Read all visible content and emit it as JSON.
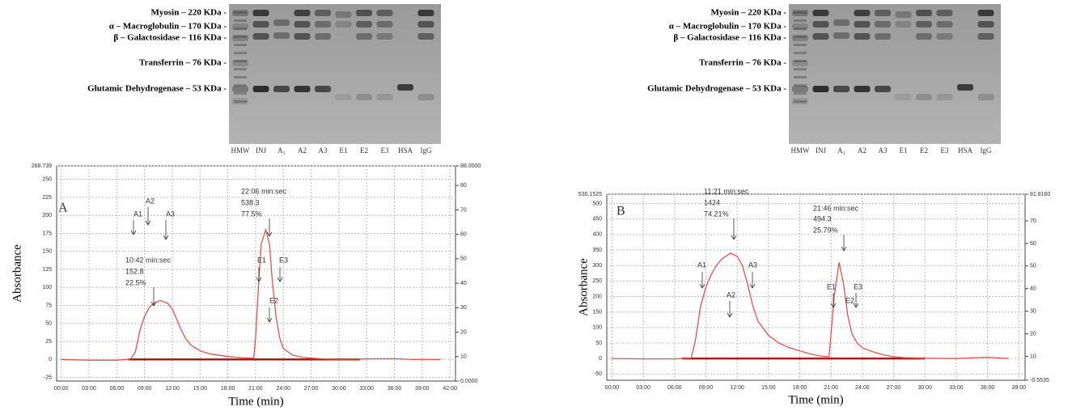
{
  "gels": [
    {
      "markers": [
        "Myosin – 220 KDa -",
        "α – Macroglobulin – 170 KDa -",
        "β – Galactosidase – 116 KDa -",
        "Transferrin – 76 KDa -",
        "Glutamic Dehydrogenase – 53 KDa -"
      ],
      "lanes": [
        "HMW",
        "INJ",
        "A₁",
        "A2",
        "A3",
        "E1",
        "E2",
        "E3",
        "HSA",
        "IgG"
      ]
    },
    {
      "markers": [
        "Myosin – 220 KDa -",
        "α – Macroglobulin – 170 KDa -",
        "β – Galactosidase – 116 KDa -",
        "Transferrin – 76 KDa -",
        "Glutamic Dehydrogenase – 53 KDa -"
      ],
      "lanes": [
        "HMW",
        "INJ",
        "A₁",
        "A2",
        "A3",
        "E1",
        "E2",
        "E3",
        "HSA",
        "IgG"
      ]
    }
  ],
  "chart_data": [
    {
      "type": "line",
      "xlabel": "Time (min)",
      "ylabel": "Absorbance",
      "color": "#e8504a",
      "grid": true,
      "x": [
        0,
        3,
        6,
        7,
        7.5,
        8,
        8.5,
        9,
        9.5,
        10,
        10.7,
        11.5,
        12,
        12.5,
        13,
        13.5,
        14,
        15,
        16,
        18,
        20,
        20.8,
        21,
        21.3,
        21.6,
        22.1,
        22.5,
        22.8,
        23.2,
        23.6,
        24,
        25,
        26,
        28,
        30,
        34,
        36,
        38,
        40,
        41
      ],
      "values": [
        0,
        -1,
        -1,
        0,
        1,
        10,
        40,
        60,
        72,
        78,
        82,
        78,
        70,
        55,
        40,
        28,
        20,
        12,
        8,
        4,
        2,
        2,
        30,
        100,
        160,
        180,
        160,
        110,
        60,
        30,
        15,
        6,
        3,
        1,
        0,
        1,
        1,
        0,
        0,
        0
      ],
      "xlim": [
        -0.5,
        42.6
      ],
      "xticks": [
        {
          "value": 0,
          "label": "00:00"
        },
        {
          "value": 3,
          "label": "03:00"
        },
        {
          "value": 6,
          "label": "06:00"
        },
        {
          "value": 9,
          "label": "09:00"
        },
        {
          "value": 12,
          "label": "12:00"
        },
        {
          "value": 15,
          "label": "15:00"
        },
        {
          "value": 18,
          "label": "18:00"
        },
        {
          "value": 21,
          "label": "21:00"
        },
        {
          "value": 24,
          "label": "24:00"
        },
        {
          "value": 27,
          "label": "27:00"
        },
        {
          "value": 30,
          "label": "30:00"
        },
        {
          "value": 33,
          "label": "33:00"
        },
        {
          "value": 36,
          "label": "36:00"
        },
        {
          "value": 39,
          "label": "39:00"
        },
        {
          "value": 42,
          "label": "42:00"
        }
      ],
      "ylim": [
        -30,
        268.739
      ],
      "yticks": [
        -25,
        0,
        25,
        50,
        75,
        100,
        125,
        150,
        175,
        200,
        225,
        250,
        268.739
      ],
      "y2lim": [
        0,
        88
      ],
      "y2ticks": [
        {
          "value": 0,
          "label": "0.0000"
        },
        10,
        20,
        30,
        40,
        50,
        60,
        70,
        80,
        {
          "value": 88,
          "label": "88.0000"
        }
      ],
      "annotations": [
        "A",
        "A2",
        "A1",
        "A3",
        "10:42 min:sec",
        "152.8",
        "22.5%",
        "22:06 min:sec",
        "538.3",
        "77.5%",
        "E1",
        "E3",
        "E2"
      ]
    },
    {
      "type": "line",
      "xlabel": "Time (min)",
      "ylabel": "Absorbance",
      "color": "#e8504a",
      "grid": true,
      "x": [
        0,
        3,
        6,
        7,
        7.6,
        8,
        8.5,
        9,
        9.5,
        10,
        10.5,
        11.35,
        12,
        12.5,
        13,
        13.5,
        14,
        15,
        16,
        17,
        18,
        19,
        20,
        20.8,
        21,
        21.3,
        21.77,
        22.2,
        22.6,
        23,
        23.5,
        24,
        25,
        26,
        27,
        28,
        30,
        33,
        35,
        36,
        37,
        38
      ],
      "values": [
        0,
        -1,
        -1,
        0,
        2,
        60,
        170,
        230,
        270,
        300,
        320,
        340,
        330,
        300,
        240,
        170,
        120,
        75,
        50,
        35,
        25,
        15,
        8,
        6,
        80,
        200,
        310,
        240,
        140,
        80,
        50,
        35,
        22,
        12,
        6,
        3,
        1,
        0,
        3,
        4,
        2,
        0
      ],
      "xlim": [
        -0.5,
        39.6
      ],
      "xticks": [
        {
          "value": 0,
          "label": "00:00"
        },
        {
          "value": 3,
          "label": "03:00"
        },
        {
          "value": 6,
          "label": "06:00"
        },
        {
          "value": 9,
          "label": "09:00"
        },
        {
          "value": 12,
          "label": "12:00"
        },
        {
          "value": 15,
          "label": "15:00"
        },
        {
          "value": 18,
          "label": "18:00"
        },
        {
          "value": 21,
          "label": "21:00"
        },
        {
          "value": 24,
          "label": "24:00"
        },
        {
          "value": 27,
          "label": "27:00"
        },
        {
          "value": 30,
          "label": "30:00"
        },
        {
          "value": 33,
          "label": "33:00"
        },
        {
          "value": 36,
          "label": "36:00"
        },
        {
          "value": 39,
          "label": "39:00"
        }
      ],
      "ylim": [
        -70,
        530.1525
      ],
      "yticks": [
        -50,
        0,
        50,
        100,
        150,
        200,
        250,
        300,
        350,
        400,
        450,
        500,
        530.1525
      ],
      "y2lim": [
        -0.5535,
        81.816
      ],
      "y2ticks": [
        {
          "value": -0.5535,
          "label": "-0.5535"
        },
        10,
        20,
        30,
        40,
        50,
        60,
        70,
        {
          "value": 81.816,
          "label": "81.8160"
        }
      ],
      "annotations": [
        "B",
        "11:21 min:sec",
        "1424",
        "74.21%",
        "21:46 min:sec",
        "494.3",
        "25.79%",
        "A1",
        "A3",
        "A2",
        "E1",
        "E3",
        "E2"
      ]
    }
  ]
}
